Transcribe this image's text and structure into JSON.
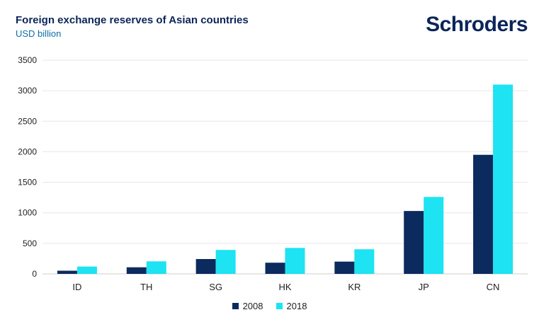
{
  "title": "Foreign exchange reserves of Asian countries",
  "subtitle": "USD billion",
  "brand": "Schroders",
  "colors": {
    "s2008": "#0b2a5e",
    "s2018": "#1de3f2",
    "grid": "#e6e6e6",
    "text": "#222222"
  },
  "chart_data": {
    "type": "bar",
    "categories": [
      "ID",
      "TH",
      "SG",
      "HK",
      "KR",
      "JP",
      "CN"
    ],
    "series": [
      {
        "name": "2008",
        "values": [
          52,
          108,
          243,
          183,
          201,
          1030,
          1950
        ]
      },
      {
        "name": "2018",
        "values": [
          120,
          205,
          392,
          425,
          403,
          1260,
          3100
        ]
      }
    ],
    "yticks": [
      0,
      500,
      1000,
      1500,
      2000,
      2500,
      3000,
      3500
    ],
    "ylim": [
      0,
      3500
    ],
    "grid": true,
    "legend": "bottom-center"
  }
}
